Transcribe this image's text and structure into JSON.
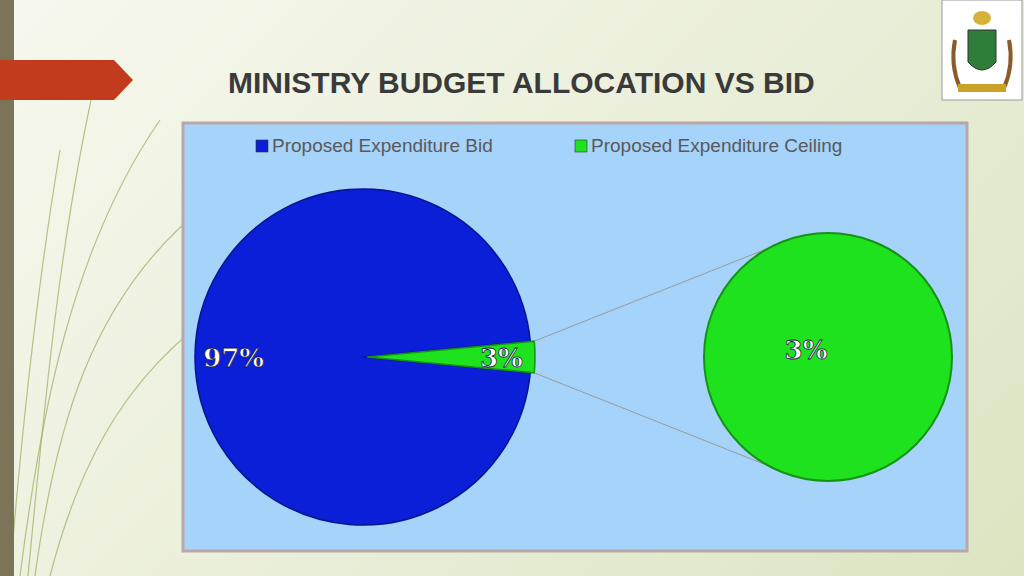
{
  "chart_data": {
    "type": "pie-of-pie",
    "title": "MINISTRY BUDGET ALLOCATION VS BID",
    "categories": [
      "Proposed Expenditure Bid",
      "Proposed Expenditure Ceiling"
    ],
    "values": [
      97,
      3
    ],
    "value_labels": [
      "97%",
      "3%"
    ],
    "colors": [
      "#0b1fd8",
      "#1fe21f"
    ],
    "data_labels": true,
    "legend": "top"
  }
}
